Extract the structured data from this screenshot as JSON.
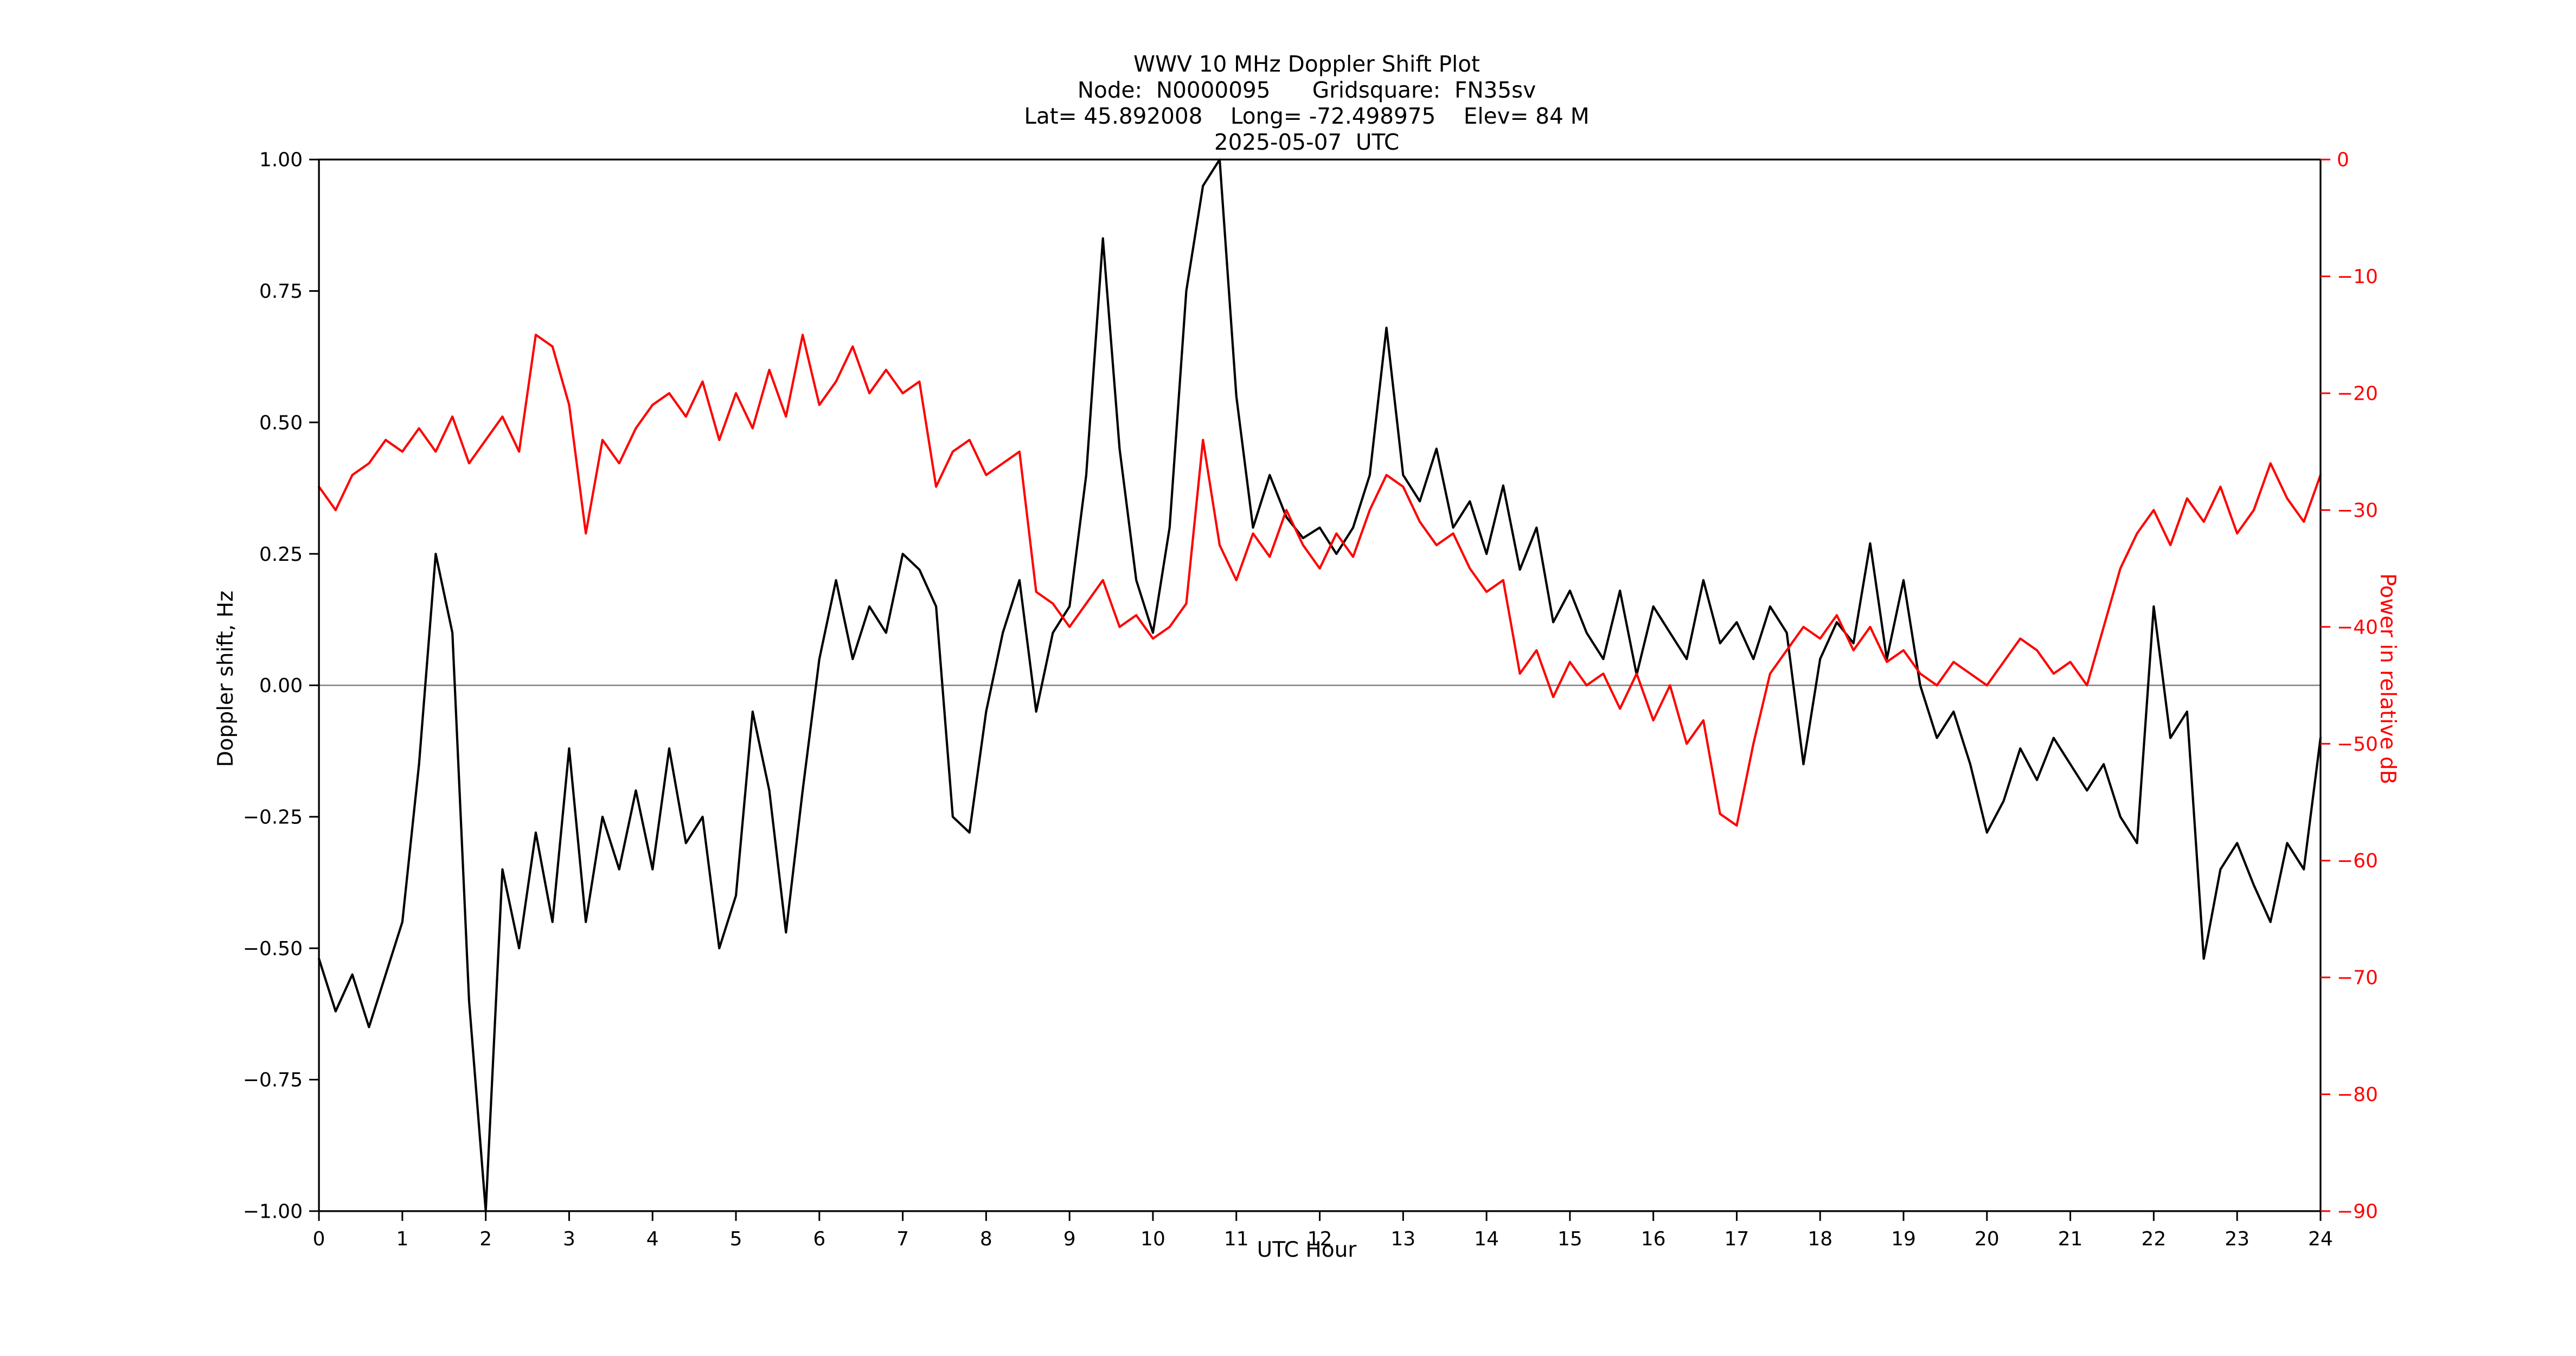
{
  "title": {
    "line1": "WWV 10 MHz Doppler Shift Plot",
    "line2": "Node:  N0000095      Gridsquare:  FN35sv",
    "line3": "Lat= 45.892008    Long= -72.498975    Elev= 84 M",
    "line4": "2025-05-07  UTC"
  },
  "colors": {
    "doppler_line": "#000000",
    "power_line": "#ff0000",
    "zero_line": "#808080",
    "frame": "#000000"
  },
  "chart_data": {
    "type": "line",
    "title": "WWV 10 MHz Doppler Shift Plot",
    "subtitle": [
      "Node:  N0000095      Gridsquare:  FN35sv",
      "Lat= 45.892008    Long= -72.498975    Elev= 84 M",
      "2025-05-07  UTC"
    ],
    "x_axis": {
      "label": "UTC Hour",
      "min": 0,
      "max": 24,
      "ticks": [
        "0",
        "1",
        "2",
        "3",
        "4",
        "5",
        "6",
        "7",
        "8",
        "9",
        "10",
        "11",
        "12",
        "13",
        "14",
        "15",
        "16",
        "17",
        "18",
        "19",
        "20",
        "21",
        "22",
        "23",
        "24"
      ]
    },
    "left_axis": {
      "label": "Doppler shift, Hz",
      "min": -1.0,
      "max": 1.0,
      "ticks": [
        "1.00",
        "0.75",
        "0.50",
        "0.25",
        "0.00",
        "−0.25",
        "−0.50",
        "−0.75",
        "−1.00"
      ]
    },
    "right_axis": {
      "label": "Power in relative dB",
      "min": -90,
      "max": 0,
      "ticks": [
        "0",
        "−10",
        "−20",
        "−30",
        "−40",
        "−50",
        "−60",
        "−70",
        "−80",
        "−90"
      ]
    },
    "x_start": 0,
    "x_step": 0.2,
    "grid": false,
    "legend": "none",
    "series": [
      {
        "name": "Doppler shift, Hz",
        "color": "#000000",
        "axis": "left",
        "values": [
          -0.52,
          -0.62,
          -0.55,
          -0.65,
          -0.55,
          -0.45,
          -0.15,
          0.25,
          0.1,
          -0.6,
          -1.0,
          -0.35,
          -0.5,
          -0.28,
          -0.45,
          -0.12,
          -0.45,
          -0.25,
          -0.35,
          -0.2,
          -0.35,
          -0.12,
          -0.3,
          -0.25,
          -0.5,
          -0.4,
          -0.05,
          -0.2,
          -0.47,
          -0.2,
          0.05,
          0.2,
          0.05,
          0.15,
          0.1,
          0.25,
          0.22,
          0.15,
          -0.25,
          -0.28,
          -0.05,
          0.1,
          0.2,
          -0.05,
          0.1,
          0.15,
          0.4,
          0.85,
          0.45,
          0.2,
          0.1,
          0.3,
          0.75,
          0.95,
          1.0,
          0.55,
          0.3,
          0.4,
          0.32,
          0.28,
          0.3,
          0.25,
          0.3,
          0.4,
          0.68,
          0.4,
          0.35,
          0.45,
          0.3,
          0.35,
          0.25,
          0.38,
          0.22,
          0.3,
          0.12,
          0.18,
          0.1,
          0.05,
          0.18,
          0.02,
          0.15,
          0.1,
          0.05,
          0.2,
          0.08,
          0.12,
          0.05,
          0.15,
          0.1,
          -0.15,
          0.05,
          0.12,
          0.08,
          0.27,
          0.05,
          0.2,
          0.0,
          -0.1,
          -0.05,
          -0.15,
          -0.28,
          -0.22,
          -0.12,
          -0.18,
          -0.1,
          -0.15,
          -0.2,
          -0.15,
          -0.25,
          -0.3,
          0.15,
          -0.1,
          -0.05,
          -0.52,
          -0.35,
          -0.3,
          -0.38,
          -0.45,
          -0.3,
          -0.35,
          -0.1
        ]
      },
      {
        "name": "Power in relative dB",
        "color": "#ff0000",
        "axis": "right",
        "values": [
          -28,
          -30,
          -27,
          -26,
          -24,
          -25,
          -23,
          -25,
          -22,
          -26,
          -24,
          -22,
          -25,
          -15,
          -16,
          -21,
          -32,
          -24,
          -26,
          -23,
          -21,
          -20,
          -22,
          -19,
          -24,
          -20,
          -23,
          -18,
          -22,
          -15,
          -21,
          -19,
          -16,
          -20,
          -18,
          -20,
          -19,
          -28,
          -25,
          -24,
          -27,
          -26,
          -25,
          -37,
          -38,
          -40,
          -38,
          -36,
          -40,
          -39,
          -41,
          -40,
          -38,
          -24,
          -33,
          -36,
          -32,
          -34,
          -30,
          -33,
          -35,
          -32,
          -34,
          -30,
          -27,
          -28,
          -31,
          -33,
          -32,
          -35,
          -37,
          -36,
          -44,
          -42,
          -46,
          -43,
          -45,
          -44,
          -47,
          -44,
          -48,
          -45,
          -50,
          -48,
          -56,
          -57,
          -50,
          -44,
          -42,
          -40,
          -41,
          -39,
          -42,
          -40,
          -43,
          -42,
          -44,
          -45,
          -43,
          -44,
          -45,
          -43,
          -41,
          -42,
          -44,
          -43,
          -45,
          -40,
          -35,
          -32,
          -30,
          -33,
          -29,
          -31,
          -28,
          -32,
          -30,
          -26,
          -29,
          -31,
          -27
        ]
      }
    ],
    "zero_reference_line": 0.0
  }
}
